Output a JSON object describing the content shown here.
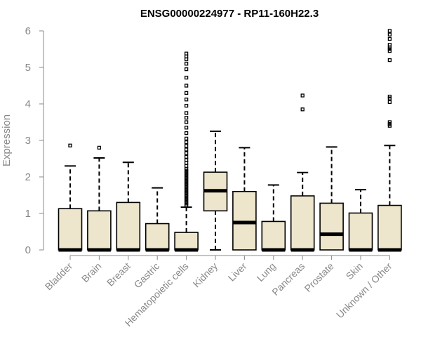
{
  "colors": {
    "box_fill": "#ede6cc",
    "axis": "#888888",
    "text_muted": "#888888"
  },
  "chart_data": {
    "type": "box",
    "title": "ENSG00000224977 - RP11-160H22.3",
    "ylabel": "Expression",
    "ylim": [
      0,
      6
    ],
    "yticks": [
      0,
      1,
      2,
      3,
      4,
      5,
      6
    ],
    "ytick_labels": [
      "0",
      "1",
      "2",
      "3",
      "4",
      "5",
      "6"
    ],
    "categories": [
      "Bladder",
      "Brain",
      "Breast",
      "Gastric",
      "Hematopoietic cells",
      "Kidney",
      "Liver",
      "Lung",
      "Pancreas",
      "Prostate",
      "Skin",
      "Unknown / Other"
    ],
    "boxes": [
      {
        "category": "Bladder",
        "min": 0,
        "q1": 0,
        "median": 0,
        "q3": 1.13,
        "max": 2.3,
        "outliers": [
          2.86
        ]
      },
      {
        "category": "Brain",
        "min": 0,
        "q1": 0,
        "median": 0,
        "q3": 1.07,
        "max": 2.52,
        "outliers": [
          2.8
        ]
      },
      {
        "category": "Breast",
        "min": 0,
        "q1": 0,
        "median": 0,
        "q3": 1.3,
        "max": 2.4,
        "outliers": []
      },
      {
        "category": "Gastric",
        "min": 0,
        "q1": 0,
        "median": 0,
        "q3": 0.72,
        "max": 1.7,
        "outliers": []
      },
      {
        "category": "Hematopoietic cells",
        "min": 0,
        "q1": 0,
        "median": 0,
        "q3": 0.48,
        "max": 1.17,
        "outliers": [
          1.22,
          1.27,
          1.32,
          1.37,
          1.42,
          1.47,
          1.52,
          1.57,
          1.62,
          1.67,
          1.72,
          1.77,
          1.82,
          1.87,
          1.92,
          1.97,
          2.02,
          2.07,
          2.12,
          2.17,
          2.22,
          2.3,
          2.38,
          2.46,
          2.55,
          2.65,
          2.75,
          2.85,
          2.95,
          3.05,
          3.2,
          3.35,
          3.5,
          3.62,
          3.75,
          3.95,
          4.12,
          4.3,
          4.5,
          4.72,
          4.95,
          5.1,
          5.22,
          5.3,
          5.38
        ]
      },
      {
        "category": "Kidney",
        "min": 0,
        "q1": 1.07,
        "median": 1.62,
        "q3": 2.13,
        "max": 3.25,
        "outliers": []
      },
      {
        "category": "Liver",
        "min": 0,
        "q1": 0,
        "median": 0.75,
        "q3": 1.6,
        "max": 2.8,
        "outliers": []
      },
      {
        "category": "Lung",
        "min": 0,
        "q1": 0,
        "median": 0,
        "q3": 0.78,
        "max": 1.78,
        "outliers": []
      },
      {
        "category": "Pancreas",
        "min": 0,
        "q1": 0,
        "median": 0,
        "q3": 1.48,
        "max": 2.12,
        "outliers": [
          3.85,
          4.23
        ]
      },
      {
        "category": "Prostate",
        "min": 0,
        "q1": 0,
        "median": 0.43,
        "q3": 1.28,
        "max": 2.82,
        "outliers": []
      },
      {
        "category": "Skin",
        "min": 0,
        "q1": 0,
        "median": 0,
        "q3": 1.01,
        "max": 1.65,
        "outliers": []
      },
      {
        "category": "Unknown / Other",
        "min": 0,
        "q1": 0,
        "median": 0,
        "q3": 1.22,
        "max": 2.86,
        "outliers": [
          3.4,
          3.45,
          3.5,
          4.05,
          4.15,
          4.2,
          5.2,
          5.45,
          5.5,
          5.55,
          5.62,
          5.78,
          5.9,
          6.0
        ]
      }
    ],
    "grid": false,
    "legend": "none"
  }
}
